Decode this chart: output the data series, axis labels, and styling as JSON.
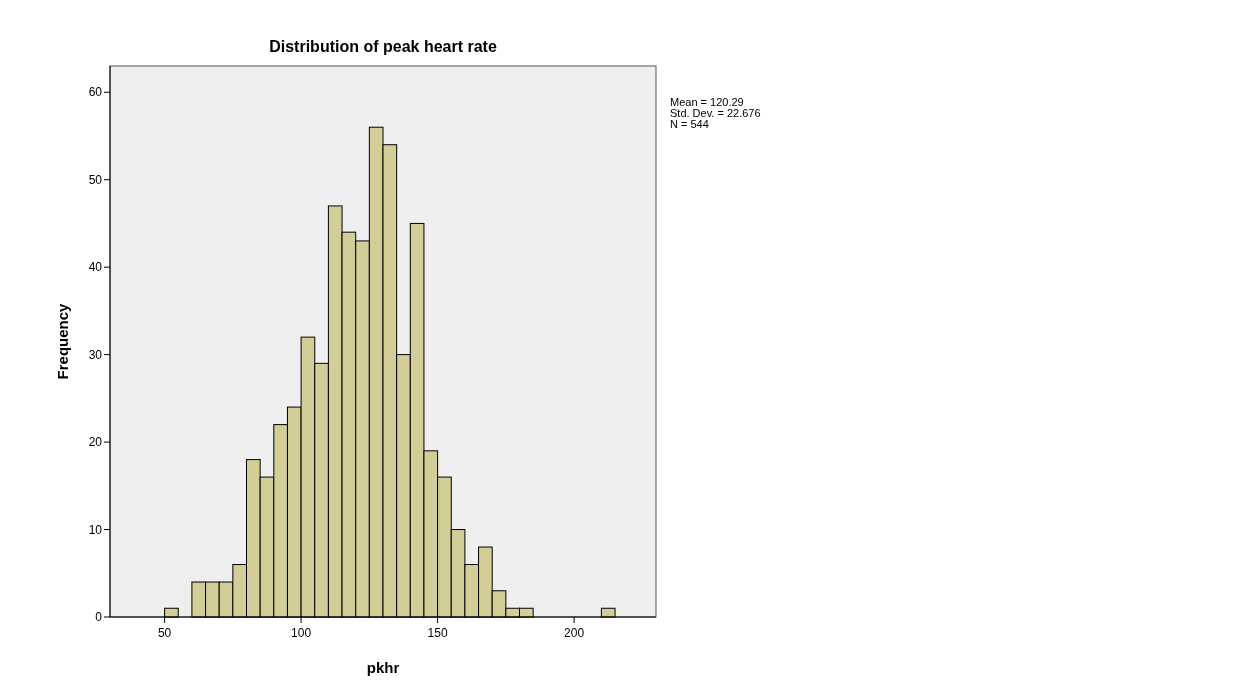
{
  "chart_data": {
    "type": "histogram",
    "title": "Distribution of peak heart rate",
    "xlabel": "pkhr",
    "ylabel": "Frequency",
    "bins": [
      50,
      55,
      60,
      65,
      70,
      75,
      80,
      85,
      90,
      95,
      100,
      105,
      110,
      115,
      120,
      125,
      130,
      135,
      140,
      145,
      150,
      155,
      160,
      165,
      170,
      175,
      180,
      185,
      190,
      195,
      200,
      205,
      210,
      215
    ],
    "values": [
      1,
      0,
      4,
      4,
      4,
      6,
      18,
      16,
      22,
      24,
      32,
      29,
      47,
      44,
      43,
      56,
      54,
      30,
      45,
      19,
      16,
      10,
      6,
      8,
      3,
      1,
      1,
      0,
      0,
      0,
      0,
      0,
      1
    ],
    "color": "#d3ce97",
    "xlim": [
      30,
      230
    ],
    "xticks": [
      50,
      100,
      150,
      200
    ],
    "ylim": [
      0,
      63
    ],
    "yticks": [
      0,
      10,
      20,
      30,
      40,
      50,
      60
    ],
    "annotations": [
      "Mean = 120.29",
      "Std. Dev. = 22.676",
      "N = 544"
    ],
    "grid": false
  }
}
